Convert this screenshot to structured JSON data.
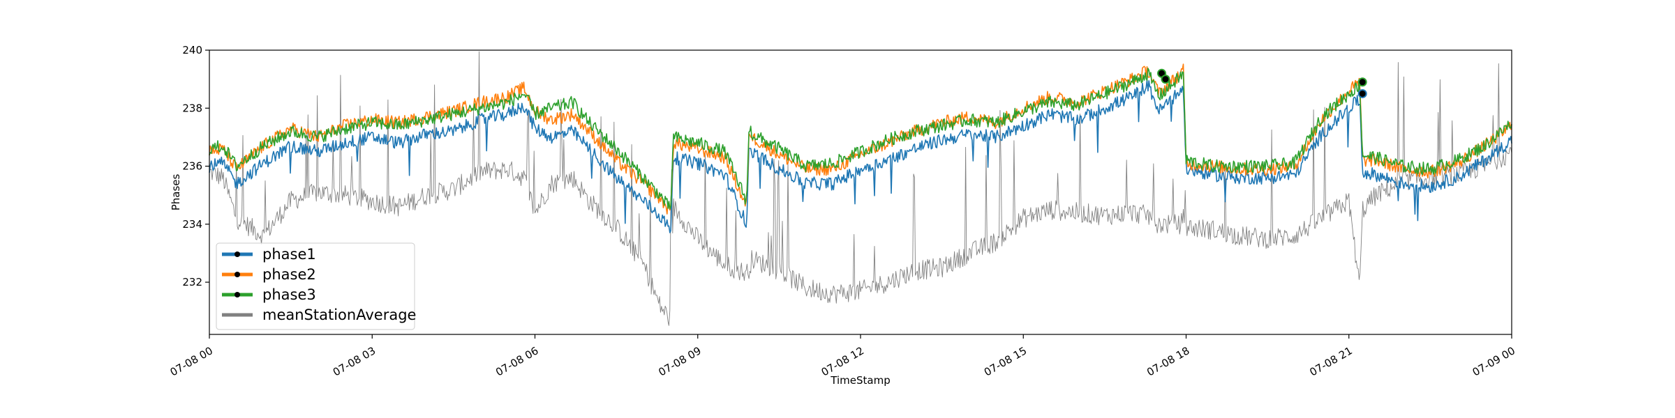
{
  "chart_data": {
    "type": "line",
    "title": "",
    "xlabel": "TimeStamp",
    "ylabel": "Phases",
    "xlim": [
      "07-08 00",
      "07-09 00"
    ],
    "ylim": [
      230.2,
      240
    ],
    "x_ticks": [
      "07-08 00",
      "07-08 03",
      "07-08 06",
      "07-08 09",
      "07-08 12",
      "07-08 15",
      "07-08 18",
      "07-08 21",
      "07-09 00"
    ],
    "y_ticks": [
      232,
      234,
      236,
      238,
      240
    ],
    "grid": false,
    "legend_position": "lower-left",
    "x_hours": [
      0,
      0.25,
      0.5,
      1,
      1.5,
      2,
      2.5,
      3,
      3.5,
      4,
      4.5,
      5,
      5.5,
      5.8,
      6,
      6.3,
      6.7,
      7,
      7.5,
      8,
      8.3,
      8.5,
      8.55,
      9,
      9.5,
      9.9,
      9.95,
      10,
      10.5,
      11,
      11.5,
      12,
      12.5,
      13,
      13.5,
      14,
      14.5,
      15,
      15.5,
      16,
      16.5,
      17,
      17.3,
      17.5,
      17.9,
      17.95,
      18,
      18.5,
      19,
      19.5,
      20,
      20.5,
      21,
      21.2,
      21.25,
      21.5,
      22,
      22.5,
      23,
      23.5,
      24
    ],
    "series": [
      {
        "name": "phase1",
        "color": "#1f77b4",
        "values": [
          236.0,
          236.1,
          235.4,
          236.1,
          236.7,
          236.5,
          236.8,
          237.0,
          236.8,
          237.1,
          237.2,
          237.6,
          237.8,
          238.1,
          237.3,
          237.0,
          237.2,
          236.6,
          235.6,
          234.8,
          234.3,
          233.8,
          236.3,
          236.1,
          235.7,
          234.0,
          236.8,
          236.5,
          235.9,
          235.4,
          235.4,
          235.9,
          236.2,
          236.6,
          236.9,
          237.1,
          237.0,
          237.4,
          237.8,
          237.6,
          238.0,
          238.4,
          238.8,
          237.9,
          238.6,
          238.7,
          235.9,
          235.7,
          235.6,
          235.6,
          235.7,
          237.1,
          238.0,
          238.3,
          235.8,
          235.7,
          235.4,
          235.3,
          235.6,
          236.2,
          236.9
        ]
      },
      {
        "name": "phase2",
        "color": "#ff7f0e",
        "values": [
          236.5,
          236.6,
          235.9,
          236.7,
          237.3,
          237.0,
          237.4,
          237.6,
          237.5,
          237.7,
          237.9,
          238.2,
          238.4,
          238.7,
          237.9,
          237.6,
          237.8,
          237.2,
          236.2,
          235.4,
          234.9,
          234.4,
          236.8,
          236.6,
          236.3,
          234.6,
          237.3,
          237.0,
          236.4,
          235.9,
          235.9,
          236.4,
          236.8,
          237.2,
          237.5,
          237.7,
          237.5,
          238.0,
          238.4,
          238.2,
          238.6,
          239.0,
          239.3,
          238.5,
          239.2,
          239.3,
          236.1,
          236.0,
          235.9,
          235.9,
          236.0,
          237.6,
          238.6,
          238.9,
          236.2,
          236.2,
          235.9,
          235.8,
          236.1,
          236.7,
          237.4
        ]
      },
      {
        "name": "phase3",
        "color": "#2ca02c",
        "values": [
          236.6,
          236.7,
          236.0,
          236.7,
          237.2,
          237.0,
          237.3,
          237.5,
          237.4,
          237.6,
          237.8,
          238.0,
          238.2,
          238.5,
          237.8,
          238.0,
          238.2,
          237.5,
          236.6,
          235.6,
          235.0,
          234.5,
          237.0,
          236.8,
          236.5,
          234.8,
          237.4,
          237.1,
          236.6,
          236.0,
          236.1,
          236.5,
          236.9,
          237.2,
          237.4,
          237.6,
          237.5,
          237.9,
          238.2,
          238.1,
          238.5,
          238.9,
          239.2,
          238.4,
          239.1,
          239.2,
          236.2,
          236.0,
          236.0,
          236.0,
          236.1,
          237.7,
          238.5,
          238.8,
          236.4,
          236.3,
          236.0,
          235.9,
          236.2,
          236.7,
          237.5
        ]
      },
      {
        "name": "meanStationAverage",
        "color": "#808080",
        "values": [
          235.8,
          235.6,
          234.2,
          233.6,
          234.8,
          235.1,
          235.0,
          234.8,
          234.6,
          235.0,
          235.2,
          235.8,
          235.9,
          235.6,
          234.4,
          235.4,
          235.6,
          234.8,
          233.9,
          232.6,
          231.2,
          230.7,
          234.6,
          233.5,
          232.6,
          232.3,
          232.5,
          232.8,
          232.4,
          231.8,
          231.6,
          231.7,
          232.0,
          232.4,
          232.5,
          233.0,
          233.4,
          234.2,
          234.5,
          234.4,
          234.3,
          234.4,
          234.3,
          234.0,
          234.0,
          234.2,
          233.9,
          233.8,
          233.6,
          233.5,
          233.6,
          234.2,
          234.8,
          231.8,
          234.5,
          235.0,
          235.5,
          235.6,
          235.7,
          236.0,
          236.5
        ]
      }
    ],
    "markers": [
      {
        "series": "phase3",
        "x_hour": 17.55,
        "y": 239.2
      },
      {
        "series": "phase3",
        "x_hour": 17.62,
        "y": 239.0
      },
      {
        "series": "phase3",
        "x_hour": 21.25,
        "y": 238.9
      },
      {
        "series": "phase1",
        "x_hour": 21.25,
        "y": 238.5
      }
    ],
    "legend": [
      "phase1",
      "phase2",
      "phase3",
      "meanStationAverage"
    ]
  }
}
